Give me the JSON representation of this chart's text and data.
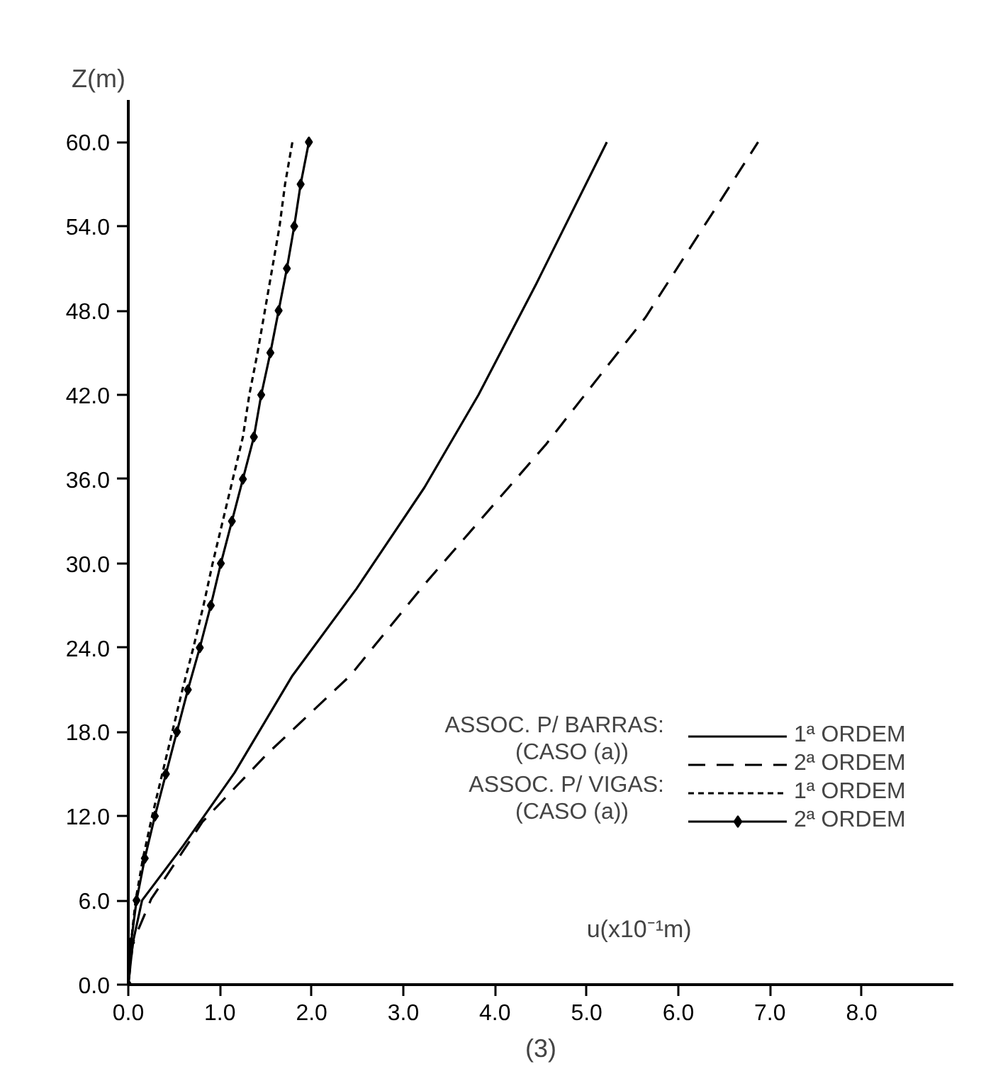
{
  "chart_data": {
    "type": "line",
    "xlabel": "u(x10⁻¹m)",
    "ylabel": "Z(m)",
    "xlim": [
      0,
      9
    ],
    "ylim": [
      0,
      63
    ],
    "xticks": [
      {
        "value": 0,
        "label": "0.0"
      },
      {
        "value": 1,
        "label": "1.0"
      },
      {
        "value": 2,
        "label": "2.0"
      },
      {
        "value": 3,
        "label": "3.0"
      },
      {
        "value": 4,
        "label": "4.0"
      },
      {
        "value": 5,
        "label": "5.0"
      },
      {
        "value": 6,
        "label": "6.0"
      },
      {
        "value": 7,
        "label": "7.0"
      },
      {
        "value": 8,
        "label": "8.0"
      }
    ],
    "yticks": [
      {
        "value": 0,
        "label": "0.0"
      },
      {
        "value": 6,
        "label": "6.0"
      },
      {
        "value": 12,
        "label": "12.0"
      },
      {
        "value": 18,
        "label": "18.0"
      },
      {
        "value": 24,
        "label": "24.0"
      },
      {
        "value": 30,
        "label": "30.0"
      },
      {
        "value": 36,
        "label": "36.0"
      },
      {
        "value": 42,
        "label": "42.0"
      },
      {
        "value": 48,
        "label": "48.0"
      },
      {
        "value": 54,
        "label": "54.0"
      },
      {
        "value": 60,
        "label": "60.0"
      }
    ],
    "grid": false,
    "legend": "right",
    "series": [
      {
        "name": "1ª ORDEM",
        "color": "#000000",
        "line_style": "solid",
        "marker": "none",
        "x": [
          0,
          0.05,
          0.15,
          0.6,
          1.16,
          1.79,
          2.49,
          3.23,
          3.82,
          4.45,
          5.22
        ],
        "values": [
          0,
          3,
          6,
          9.9,
          15.1,
          22.0,
          28.2,
          35.4,
          42.0,
          49.9,
          60
        ]
      },
      {
        "name": "2ª ORDEM",
        "color": "#000000",
        "line_style": "dashed",
        "marker": "none",
        "x": [
          0,
          0.05,
          0.25,
          0.81,
          1.51,
          2.42,
          3.23,
          4.56,
          5.64,
          6.87
        ],
        "values": [
          0,
          3,
          6.1,
          11.6,
          16.4,
          22,
          28.5,
          38.5,
          47.5,
          60
        ]
      },
      {
        "name": "1ª ORDEM",
        "color": "#000000",
        "line_style": "dotted",
        "marker": "none",
        "x": [
          0,
          0.03,
          0.08,
          0.16,
          0.26,
          0.37,
          0.48,
          0.59,
          0.71,
          0.82,
          0.92,
          1.03,
          1.14,
          1.25,
          1.32,
          1.41,
          1.49,
          1.57,
          1.65,
          1.71,
          1.79
        ],
        "values": [
          0,
          3,
          6,
          9,
          12,
          15,
          18,
          21,
          24,
          27,
          30,
          33,
          36,
          39,
          42,
          45,
          48,
          51,
          54,
          57,
          60
        ]
      },
      {
        "name": "2ª ORDEM",
        "color": "#000000",
        "line_style": "solid",
        "marker": "diamond",
        "x": [
          0,
          0.03,
          0.09,
          0.18,
          0.29,
          0.41,
          0.53,
          0.65,
          0.78,
          0.9,
          1.01,
          1.13,
          1.25,
          1.37,
          1.45,
          1.55,
          1.64,
          1.73,
          1.81,
          1.88,
          1.97
        ],
        "values": [
          0,
          3,
          6,
          9,
          12,
          15,
          18,
          21,
          24,
          27,
          30,
          33,
          36,
          39,
          42,
          45,
          48,
          51,
          54,
          57,
          60
        ]
      }
    ],
    "annotations": [
      "ASSOC. P/ BARRAS:",
      "(CASO (a))",
      "ASSOC. P/ VIGAS:",
      "(CASO (a))",
      "(3)"
    ]
  }
}
